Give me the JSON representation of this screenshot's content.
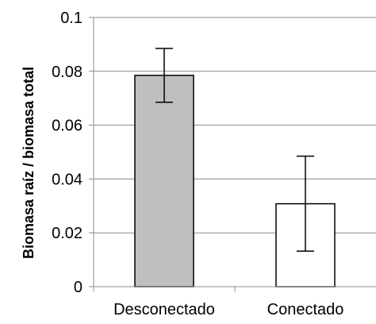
{
  "chart_data": {
    "type": "bar",
    "title": "",
    "xlabel": "",
    "ylabel": "Biomasa raíz / biomasa total",
    "categories": [
      "Desconectado",
      "Conectado"
    ],
    "values": [
      0.0785,
      0.0308
    ],
    "error_low": [
      0.0685,
      0.0132
    ],
    "error_high": [
      0.0885,
      0.0485
    ],
    "bar_colors": [
      "#bfbfbf",
      "#ffffff"
    ],
    "ylim": [
      0,
      0.1
    ],
    "yticks": [
      0,
      0.02,
      0.04,
      0.06,
      0.08,
      0.1
    ],
    "ytick_labels": [
      "0",
      "0.02",
      "0.04",
      "0.06",
      "0.08",
      "0.1"
    ],
    "grid": true,
    "legend": "none"
  }
}
